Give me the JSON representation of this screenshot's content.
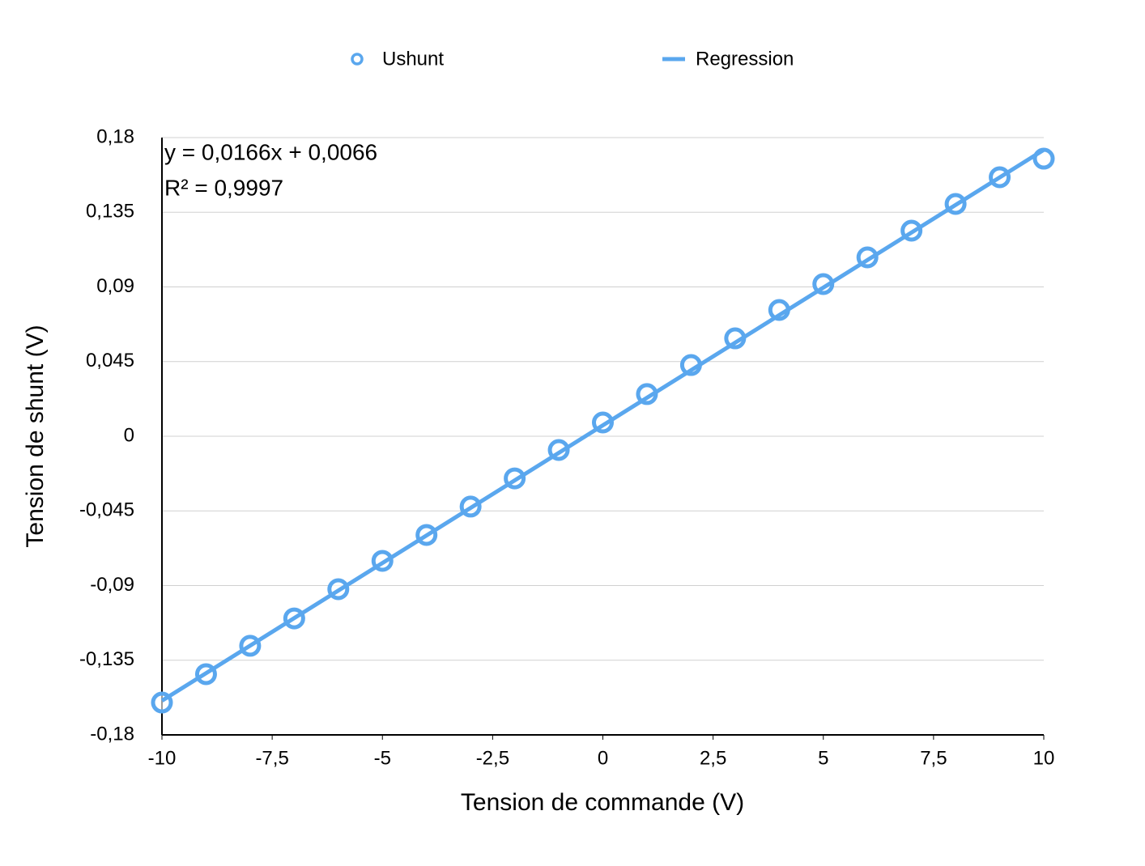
{
  "chart_data": {
    "type": "scatter",
    "x_label": "Tension de commande (V)",
    "y_label": "Tension de shunt (V)",
    "annotations": [
      "y = 0,0166x + 0,0066",
      "R² = 0,9997"
    ],
    "xlim": [
      -10,
      10
    ],
    "ylim": [
      -0.18,
      0.18
    ],
    "xticks": [
      -10,
      {
        "value": -7.5,
        "label": "-7,5"
      },
      -5,
      {
        "value": -2.5,
        "label": "-2,5"
      },
      0,
      {
        "value": 2.5,
        "label": "2,5"
      },
      5,
      {
        "value": 7.5,
        "label": "7,5"
      },
      10
    ],
    "yticks": [
      {
        "value": -0.18,
        "label": "-0,18"
      },
      {
        "value": -0.135,
        "label": "-0,135"
      },
      {
        "value": -0.09,
        "label": "-0,09"
      },
      {
        "value": -0.045,
        "label": "-0,045"
      },
      0,
      {
        "value": 0.045,
        "label": "0,045"
      },
      {
        "value": 0.09,
        "label": "0,09"
      },
      {
        "value": 0.135,
        "label": "0,135"
      },
      {
        "value": 0.18,
        "label": "0,18"
      }
    ],
    "grid": true,
    "legend": "top",
    "series": [
      {
        "name": "Ushunt",
        "color": "#5aa7ee",
        "mode": "markers",
        "x": [
          -10,
          -9,
          -8,
          -7,
          -6,
          -5,
          -4,
          -3,
          -2,
          -1,
          0,
          1,
          2,
          3,
          4,
          5,
          6,
          7,
          8,
          9,
          10
        ],
        "values": [
          -0.1605,
          -0.1434,
          -0.1263,
          -0.1098,
          -0.0922,
          -0.0751,
          -0.0595,
          -0.0424,
          -0.0254,
          -0.0083,
          0.0083,
          0.0254,
          0.0429,
          0.059,
          0.0761,
          0.0917,
          0.1078,
          0.1239,
          0.14,
          0.1561,
          0.1673
        ]
      },
      {
        "name": "Regression",
        "color": "#5aa7ee",
        "mode": "line",
        "x": [
          -10,
          10
        ],
        "values": [
          -0.1594,
          0.1726
        ]
      }
    ]
  }
}
